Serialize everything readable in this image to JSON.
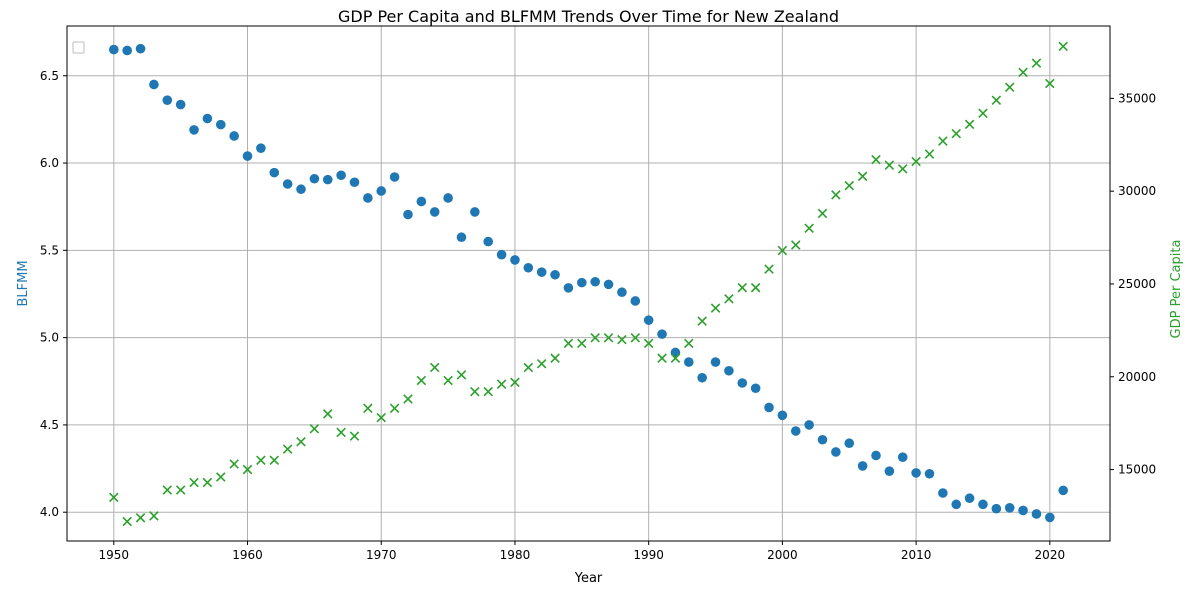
{
  "chart_data": {
    "type": "scatter",
    "title": "GDP Per Capita and BLFMM Trends Over Time for New Zealand",
    "xlabel": "Year",
    "ylabel_left": "BLFMM",
    "ylabel_right": "GDP Per Capita",
    "xlim": [
      1946.5,
      2024.5
    ],
    "ylim_left": [
      3.835,
      6.785
    ],
    "ylim_right": [
      11150,
      38900
    ],
    "x_ticks": [
      1950,
      1960,
      1970,
      1980,
      1990,
      2000,
      2010,
      2020
    ],
    "y_left_ticks": [
      4.0,
      4.5,
      5.0,
      5.5,
      6.0,
      6.5
    ],
    "y_left_tick_labels": [
      "4.0",
      "4.5",
      "5.0",
      "5.5",
      "6.0",
      "6.5"
    ],
    "y_right_ticks": [
      15000,
      20000,
      25000,
      30000,
      35000
    ],
    "grid": true,
    "legend": "top-left (empty)",
    "colors": {
      "blfmm": "#1f77b4",
      "gdp": "#2ca02c",
      "grid": "#b0b0b0",
      "axis": "#000000"
    },
    "x": [
      1950,
      1951,
      1952,
      1953,
      1954,
      1955,
      1956,
      1957,
      1958,
      1959,
      1960,
      1961,
      1962,
      1963,
      1964,
      1965,
      1966,
      1967,
      1968,
      1969,
      1970,
      1971,
      1972,
      1973,
      1974,
      1975,
      1976,
      1977,
      1978,
      1979,
      1980,
      1981,
      1982,
      1983,
      1984,
      1985,
      1986,
      1987,
      1988,
      1989,
      1990,
      1991,
      1992,
      1993,
      1994,
      1995,
      1996,
      1997,
      1998,
      1999,
      2000,
      2001,
      2002,
      2003,
      2004,
      2005,
      2006,
      2007,
      2008,
      2009,
      2010,
      2011,
      2012,
      2013,
      2014,
      2015,
      2016,
      2017,
      2018,
      2019,
      2020,
      2021
    ],
    "series": [
      {
        "name": "BLFMM",
        "axis": "left",
        "marker": "circle",
        "values": [
          6.65,
          6.645,
          6.655,
          6.45,
          6.36,
          6.335,
          6.19,
          6.255,
          6.22,
          6.155,
          6.04,
          6.085,
          5.945,
          5.88,
          5.85,
          5.91,
          5.905,
          5.93,
          5.89,
          5.8,
          5.84,
          5.92,
          5.705,
          5.78,
          5.72,
          5.8,
          5.575,
          5.72,
          5.55,
          5.475,
          5.445,
          5.4,
          5.375,
          5.36,
          5.285,
          5.315,
          5.32,
          5.305,
          5.26,
          5.21,
          5.1,
          5.02,
          4.915,
          4.86,
          4.77,
          4.86,
          4.81,
          4.74,
          4.71,
          4.6,
          4.555,
          4.465,
          4.5,
          4.415,
          4.345,
          4.395,
          4.265,
          4.325,
          4.235,
          4.315,
          4.225,
          4.22,
          4.11,
          4.045,
          4.08,
          4.045,
          4.02,
          4.025,
          4.01,
          3.99,
          3.97,
          4.125
        ]
      },
      {
        "name": "GDP Per Capita",
        "axis": "right",
        "marker": "x",
        "values": [
          13500,
          12200,
          12400,
          12500,
          13900,
          13900,
          14300,
          14300,
          14600,
          15300,
          15000,
          15500,
          15500,
          16100,
          16500,
          17200,
          18000,
          17000,
          16800,
          18300,
          17800,
          18300,
          18800,
          19800,
          20500,
          19800,
          20100,
          19200,
          19200,
          19600,
          19700,
          20500,
          20700,
          21000,
          21800,
          21800,
          22100,
          22100,
          22000,
          22100,
          21800,
          21000,
          21000,
          21800,
          23000,
          23700,
          24200,
          24800,
          24800,
          25800,
          26800,
          27100,
          28000,
          28800,
          29800,
          30300,
          30800,
          31700,
          31400,
          31200,
          31600,
          32000,
          32700,
          33100,
          33600,
          34200,
          34900,
          35600,
          36400,
          36900,
          35800,
          37800
        ]
      }
    ]
  }
}
